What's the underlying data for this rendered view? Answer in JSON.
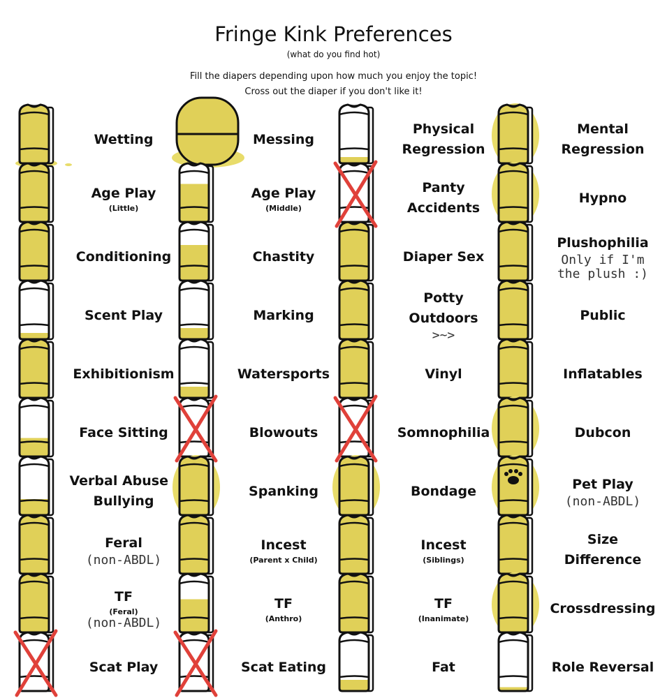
{
  "header": {
    "title": "Fringe Kink Preferences",
    "subtitle": "(what do you find hot)",
    "instruction_1": "Fill the diapers depending upon how much you enjoy the topic!",
    "instruction_2": "Cross out the diaper if you don't like it!"
  },
  "colors": {
    "fill": "#e0d058",
    "overflow": "#e8dc6a",
    "cross": "#e0413a",
    "outline": "#111111"
  },
  "items": [
    {
      "label": "Wetting",
      "fill": 1,
      "spill": true
    },
    {
      "label": "Messing",
      "fill": 1,
      "burst": true
    },
    {
      "label": "Physical Regression",
      "fill": 0.1
    },
    {
      "label": "Mental Regression",
      "fill": 1,
      "overflow": true
    },
    {
      "label": "Age Play",
      "sub": "(Little)",
      "fill": 1
    },
    {
      "label": "Age Play",
      "sub": "(Middle)",
      "fill": 0.75
    },
    {
      "label": "Panty Accidents",
      "fill": 0,
      "crossed": true
    },
    {
      "label": "Hypno",
      "fill": 1,
      "overflow": true
    },
    {
      "label": "Conditioning",
      "fill": 1
    },
    {
      "label": "Chastity",
      "fill": 0.7
    },
    {
      "label": "Diaper Sex",
      "fill": 1
    },
    {
      "label": "Plushophilia",
      "fill": 1,
      "note": "Only if I'm the plush :)"
    },
    {
      "label": "Scent Play",
      "fill": 0.1
    },
    {
      "label": "Marking",
      "fill": 0.2
    },
    {
      "label": "Potty Outdoors",
      "fill": 1,
      "note": ">~>"
    },
    {
      "label": "Public",
      "fill": 1
    },
    {
      "label": "Exhibitionism",
      "fill": 1
    },
    {
      "label": "Watersports",
      "fill": 0.2
    },
    {
      "label": "Vinyl",
      "fill": 1
    },
    {
      "label": "Inflatables",
      "fill": 1
    },
    {
      "label": "Face Sitting",
      "fill": 0.35
    },
    {
      "label": "Blowouts",
      "fill": 0,
      "crossed": true
    },
    {
      "label": "Somnophilia",
      "fill": 0,
      "crossed": true
    },
    {
      "label": "Dubcon",
      "fill": 1,
      "overflow": true
    },
    {
      "label": "Verbal Abuse / Bullying",
      "fill": 0.3
    },
    {
      "label": "Spanking",
      "fill": 1,
      "overflow": true
    },
    {
      "label": "Bondage",
      "fill": 1,
      "overflow": true
    },
    {
      "label": "Pet Play",
      "fill": 1,
      "overflow": true,
      "paw": true,
      "note": "(non-ABDL)"
    },
    {
      "label": "Feral",
      "fill": 1,
      "note": "(non-ABDL)"
    },
    {
      "label": "Incest",
      "sub": "(Parent x Child)",
      "fill": 1
    },
    {
      "label": "Incest",
      "sub": "(Siblings)",
      "fill": 1
    },
    {
      "label": "Size Difference",
      "fill": 1
    },
    {
      "label": "TF",
      "sub": "(Feral)",
      "fill": 1,
      "note": "(non-ABDL)"
    },
    {
      "label": "TF",
      "sub": "(Anthro)",
      "fill": 0.65
    },
    {
      "label": "TF",
      "sub": "(Inanimate)",
      "fill": 1
    },
    {
      "label": "Crossdressing",
      "fill": 1,
      "overflow": true
    },
    {
      "label": "Scat Play",
      "fill": 0,
      "crossed": true
    },
    {
      "label": "Scat Eating",
      "fill": 0,
      "crossed": true
    },
    {
      "label": "Fat",
      "fill": 0.2
    },
    {
      "label": "Role Reversal",
      "fill": 0.05
    }
  ]
}
